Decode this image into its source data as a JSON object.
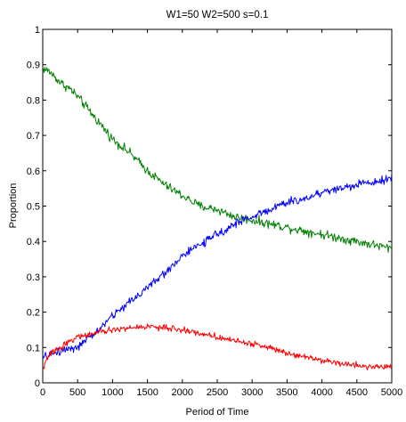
{
  "chart_data": {
    "type": "line",
    "title": "W1=50  W2=500  s=0.1",
    "xlabel": "Period of Time",
    "ylabel": "Proportion",
    "xlim": [
      0,
      5000
    ],
    "ylim": [
      0,
      1
    ],
    "xticks": [
      0,
      500,
      1000,
      1500,
      2000,
      2500,
      3000,
      3500,
      4000,
      4500,
      5000
    ],
    "yticks": [
      0,
      0.1,
      0.2,
      0.3,
      0.4,
      0.5,
      0.6,
      0.7,
      0.8,
      0.9,
      1
    ],
    "xtick_labels": [
      "0",
      "500",
      "1000",
      "1500",
      "2000",
      "2500",
      "3000",
      "3500",
      "4000",
      "4500",
      "5000"
    ],
    "ytick_labels": [
      "0",
      "0.1",
      "0.2",
      "0.3",
      "0.4",
      "0.5",
      "0.6",
      "0.7",
      "0.8",
      "0.9",
      "1"
    ],
    "grid": false,
    "legend": "none",
    "series": [
      {
        "color": "#008000",
        "x": [
          0,
          100,
          250,
          400,
          500,
          750,
          1000,
          1250,
          1500,
          1750,
          2000,
          2250,
          2500,
          2750,
          3000,
          3250,
          3500,
          3750,
          4000,
          4250,
          4500,
          4750,
          5000
        ],
        "values": [
          0.89,
          0.88,
          0.85,
          0.83,
          0.81,
          0.75,
          0.69,
          0.65,
          0.6,
          0.56,
          0.53,
          0.5,
          0.49,
          0.47,
          0.46,
          0.45,
          0.44,
          0.43,
          0.42,
          0.41,
          0.4,
          0.39,
          0.38
        ]
      },
      {
        "color": "#0000ff",
        "x": [
          0,
          100,
          250,
          400,
          500,
          750,
          1000,
          1250,
          1500,
          1750,
          2000,
          2250,
          2500,
          2750,
          3000,
          3250,
          3500,
          3750,
          4000,
          4250,
          4500,
          4750,
          5000
        ],
        "values": [
          0.07,
          0.08,
          0.09,
          0.1,
          0.1,
          0.14,
          0.19,
          0.23,
          0.27,
          0.31,
          0.36,
          0.39,
          0.42,
          0.45,
          0.47,
          0.49,
          0.51,
          0.52,
          0.54,
          0.55,
          0.56,
          0.57,
          0.58
        ]
      },
      {
        "color": "#ff0000",
        "x": [
          0,
          100,
          250,
          400,
          500,
          750,
          1000,
          1250,
          1500,
          1750,
          2000,
          2250,
          2500,
          2750,
          3000,
          3250,
          3500,
          3750,
          4000,
          4250,
          4500,
          4750,
          5000
        ],
        "values": [
          0.04,
          0.08,
          0.1,
          0.12,
          0.13,
          0.14,
          0.15,
          0.155,
          0.16,
          0.155,
          0.15,
          0.14,
          0.13,
          0.12,
          0.11,
          0.1,
          0.085,
          0.075,
          0.065,
          0.055,
          0.05,
          0.045,
          0.045
        ]
      }
    ]
  }
}
